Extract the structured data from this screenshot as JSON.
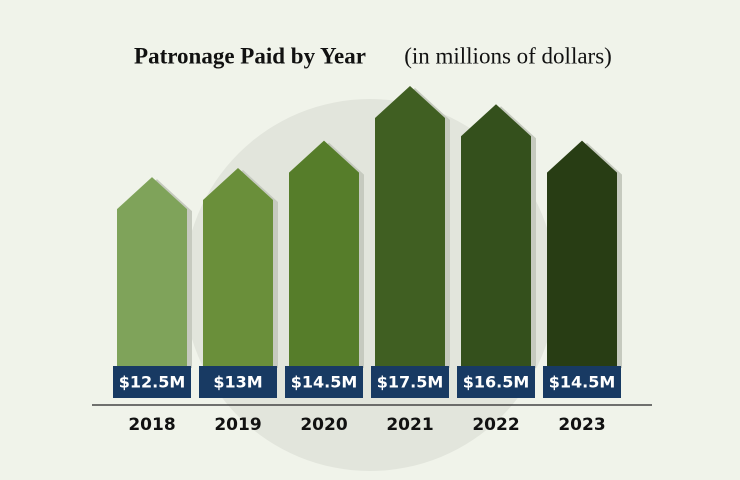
{
  "chart_data": {
    "type": "bar",
    "title": "Patronage Paid by Year",
    "subtitle": "(in millions of dollars)",
    "categories": [
      "2018",
      "2019",
      "2020",
      "2021",
      "2022",
      "2023"
    ],
    "values": [
      12.5,
      13,
      14.5,
      17.5,
      16.5,
      14.5
    ],
    "value_labels": [
      "$12.5M",
      "$13M",
      "$14.5M",
      "$17.5M",
      "$16.5M",
      "$14.5M"
    ],
    "colors": [
      "#7fa35a",
      "#6a8f3a",
      "#567d2a",
      "#405f22",
      "#34501c",
      "#283d14"
    ],
    "label_color": "#183a63"
  }
}
